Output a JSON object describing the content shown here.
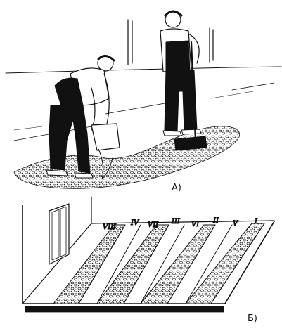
{
  "labels": {
    "part_a": "А)",
    "part_b": "Б)"
  },
  "strip_numbers": [
    "VIII",
    "IV",
    "VII",
    "III",
    "VI",
    "II",
    "V",
    "I"
  ],
  "colors": {
    "ink": "#111111",
    "paper": "#ffffff"
  }
}
